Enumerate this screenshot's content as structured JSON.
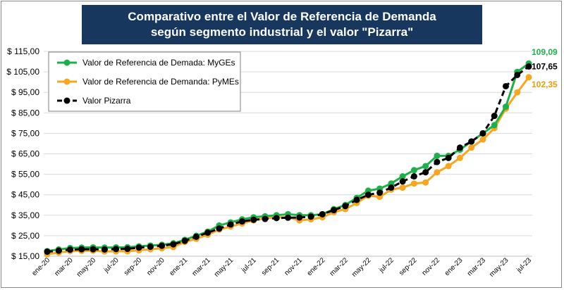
{
  "chart_data": {
    "type": "line",
    "title": "Comparativo entre el Valor de Referencia de Demanda según segmento industrial y el valor \"Pizarra\"",
    "xlabel": "",
    "ylabel": "",
    "ylim": [
      15,
      115
    ],
    "yticks": [
      "$ 15,00",
      "$ 25,00",
      "$ 35,00",
      "$ 45,00",
      "$ 55,00",
      "$ 65,00",
      "$ 75,00",
      "$ 85,00",
      "$ 95,00",
      "$ 105,00",
      "$ 115,00"
    ],
    "ytick_values": [
      15,
      25,
      35,
      45,
      55,
      65,
      75,
      85,
      95,
      105,
      115
    ],
    "x": [
      "ene-20",
      "feb-20",
      "mar-20",
      "abr-20",
      "may-20",
      "jun-20",
      "jul-20",
      "ago-20",
      "sep-20",
      "oct-20",
      "nov-20",
      "dic-20",
      "ene-21",
      "feb-21",
      "mar-21",
      "abr-21",
      "may-21",
      "jun-21",
      "jul-21",
      "ago-21",
      "sep-21",
      "oct-21",
      "nov-21",
      "dic-21",
      "ene-22",
      "feb-22",
      "mar-22",
      "abr-22",
      "may-22",
      "jun-22",
      "jul-22",
      "ago-22",
      "sep-22",
      "oct-22",
      "nov-22",
      "dic-22",
      "ene-23",
      "feb-23",
      "mar-23",
      "abr-23",
      "may-23",
      "jun-23",
      "jul-23"
    ],
    "xtick_labels": [
      "ene-20",
      "mar-20",
      "may-20",
      "jul-20",
      "sep-20",
      "nov-20",
      "ene-21",
      "mar-21",
      "may-21",
      "jul-21",
      "sep-21",
      "nov-21",
      "ene-22",
      "mar-22",
      "may-22",
      "jul-22",
      "sep-22",
      "nov-22",
      "ene-23",
      "mar-23",
      "may-23",
      "jul-23"
    ],
    "series": [
      {
        "name": "Valor de Referencia de Demada: MyGEs",
        "color": "#1fae4b",
        "style": "solid",
        "values": [
          17.5,
          18.3,
          19.0,
          19.2,
          19.3,
          19.2,
          19.3,
          19.4,
          19.8,
          20.2,
          20.6,
          21.3,
          23.0,
          25.0,
          27.0,
          30.0,
          31.5,
          33.0,
          34.0,
          34.5,
          35.0,
          35.5,
          35.0,
          35.0,
          35.5,
          38.0,
          40.0,
          43.5,
          47.0,
          48.0,
          50.5,
          54.0,
          57.0,
          59.0,
          64.0,
          64.0,
          67.0,
          71.0,
          75.0,
          79.0,
          88.0,
          105.0,
          109.09
        ]
      },
      {
        "name": "Valor de Referencia de Demanda: PyMEs",
        "color": "#f5a623",
        "style": "solid",
        "values": [
          16.0,
          16.8,
          17.5,
          17.6,
          17.7,
          17.3,
          17.4,
          17.4,
          17.9,
          18.4,
          18.9,
          19.5,
          22.0,
          23.5,
          25.5,
          28.0,
          29.5,
          31.0,
          32.5,
          33.5,
          34.0,
          34.0,
          32.5,
          33.0,
          34.0,
          36.5,
          38.0,
          41.0,
          44.5,
          44.0,
          47.5,
          48.5,
          50.5,
          51.0,
          56.0,
          59.0,
          63.0,
          68.0,
          72.0,
          77.5,
          87.0,
          95.0,
          102.35
        ]
      },
      {
        "name": "Valor Pizarra",
        "color": "#000000",
        "style": "dashed",
        "values": [
          17.2,
          17.7,
          18.2,
          18.4,
          18.4,
          18.3,
          18.5,
          18.6,
          19.2,
          19.6,
          20.1,
          20.8,
          22.5,
          24.5,
          26.5,
          28.5,
          30.5,
          32.0,
          32.8,
          33.2,
          33.6,
          33.8,
          33.9,
          34.3,
          35.5,
          37.5,
          39.5,
          42.5,
          45.0,
          46.0,
          48.5,
          51.5,
          54.0,
          56.0,
          61.0,
          63.0,
          68.0,
          71.0,
          75.0,
          83.5,
          98.0,
          103.5,
          107.65
        ]
      }
    ],
    "end_labels": [
      {
        "text": "109,09",
        "series": 0,
        "color": "#1fae4b"
      },
      {
        "text": "107,65",
        "series": 2,
        "color": "#000000"
      },
      {
        "text": "102,35",
        "series": 1,
        "color": "#e0a010"
      }
    ],
    "legend": "top-left",
    "grid": "horizontal"
  }
}
